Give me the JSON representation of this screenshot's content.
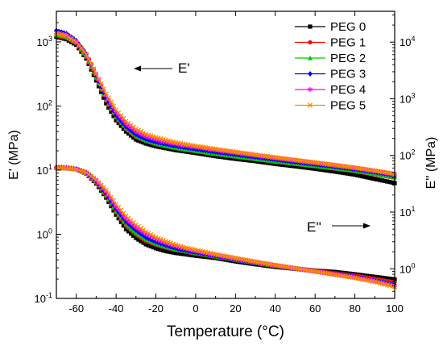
{
  "chart_data": {
    "type": "line",
    "title": "",
    "xlabel": "Temperature (°C)",
    "ylabel_left": "E' (MPa)",
    "ylabel_right": "E'' (MPa)",
    "xlim": [
      -70,
      100
    ],
    "ylim_left": [
      0.1,
      3000
    ],
    "ylim_right": [
      0.3,
      35000
    ],
    "yscale": "log",
    "x_ticks": [
      -60,
      -40,
      -20,
      0,
      20,
      40,
      60,
      80,
      100
    ],
    "y_left_ticks": [
      {
        "value": 0.1,
        "base": "10",
        "exp": "-1"
      },
      {
        "value": 1,
        "base": "10",
        "exp": "0"
      },
      {
        "value": 10,
        "base": "10",
        "exp": "1"
      },
      {
        "value": 100,
        "base": "10",
        "exp": "2"
      },
      {
        "value": 1000,
        "base": "10",
        "exp": "3"
      }
    ],
    "y_right_ticks": [
      {
        "value": 1,
        "base": "10",
        "exp": "0"
      },
      {
        "value": 10,
        "base": "10",
        "exp": "1"
      },
      {
        "value": 100,
        "base": "10",
        "exp": "2"
      },
      {
        "value": 1000,
        "base": "10",
        "exp": "3"
      },
      {
        "value": 10000,
        "base": "10",
        "exp": "4"
      }
    ],
    "grid": false,
    "legend_position": "top-right",
    "annotations": [
      {
        "text": "E'",
        "arrow": "left"
      },
      {
        "text": "E''",
        "arrow": "right"
      }
    ],
    "x": [
      -70,
      -65,
      -60,
      -55,
      -50,
      -45,
      -40,
      -35,
      -30,
      -25,
      -20,
      -15,
      -10,
      -5,
      0,
      10,
      20,
      30,
      40,
      50,
      60,
      70,
      80,
      90,
      100
    ],
    "series": [
      {
        "name": "PEG 0",
        "color": "#000000",
        "marker": "square",
        "storage_modulus": [
          1200,
          1100,
          900,
          550,
          250,
          110,
          60,
          40,
          30,
          26,
          23.5,
          22,
          20.5,
          19.5,
          18.5,
          16.5,
          15,
          13.8,
          12.5,
          11.5,
          10.5,
          9.5,
          8.5,
          7.3,
          6.3
        ],
        "loss_modulus": [
          60,
          59.5,
          57,
          48,
          32,
          18,
          9,
          5,
          3.5,
          2.7,
          2.3,
          2.05,
          1.9,
          1.8,
          1.7,
          1.55,
          1.35,
          1.2,
          1.08,
          1.0,
          0.93,
          0.88,
          0.8,
          0.72,
          0.65
        ]
      },
      {
        "name": "PEG 1",
        "color": "#ff0000",
        "marker": "circle",
        "storage_modulus": [
          1250,
          1150,
          950,
          580,
          270,
          120,
          66,
          44,
          33,
          28.5,
          25.5,
          23.5,
          22,
          20.8,
          19.7,
          17.8,
          16.2,
          14.8,
          13.5,
          12.5,
          11.5,
          10.5,
          9.6,
          8.6,
          7.6
        ],
        "loss_modulus": [
          60,
          59.5,
          57,
          48,
          33,
          19,
          9.8,
          5.7,
          4.0,
          3.1,
          2.65,
          2.35,
          2.15,
          2.0,
          1.85,
          1.62,
          1.42,
          1.25,
          1.12,
          1.02,
          0.93,
          0.84,
          0.76,
          0.67,
          0.58
        ]
      },
      {
        "name": "PEG 2",
        "color": "#00cc00",
        "marker": "triangle",
        "storage_modulus": [
          1300,
          1200,
          980,
          600,
          280,
          125,
          68,
          45,
          34,
          29,
          26,
          24,
          22.3,
          21,
          20,
          18,
          16.4,
          15,
          13.7,
          12.6,
          11.6,
          10.7,
          9.8,
          8.8,
          7.8
        ],
        "loss_modulus": [
          61,
          60,
          57.5,
          49,
          34,
          20,
          10.4,
          6.1,
          4.3,
          3.3,
          2.8,
          2.45,
          2.2,
          2.05,
          1.9,
          1.65,
          1.45,
          1.27,
          1.13,
          1.02,
          0.92,
          0.83,
          0.74,
          0.65,
          0.55
        ]
      },
      {
        "name": "PEG 3",
        "color": "#0000ff",
        "marker": "diamond",
        "storage_modulus": [
          1500,
          1350,
          1050,
          650,
          300,
          135,
          72,
          48,
          36,
          30.5,
          27.5,
          25.5,
          23.8,
          22.5,
          21.3,
          19.2,
          17.5,
          16,
          14.6,
          13.4,
          12.3,
          11.3,
          10.3,
          9.3,
          8.3
        ],
        "loss_modulus": [
          62,
          61,
          58,
          50,
          35,
          21.5,
          11.5,
          6.8,
          4.8,
          3.6,
          3.0,
          2.6,
          2.3,
          2.1,
          1.95,
          1.68,
          1.47,
          1.28,
          1.13,
          1.01,
          0.91,
          0.82,
          0.72,
          0.62,
          0.52
        ]
      },
      {
        "name": "PEG 4",
        "color": "#ff00ff",
        "marker": "star",
        "storage_modulus": [
          1400,
          1280,
          1020,
          640,
          310,
          145,
          80,
          53,
          40,
          33.5,
          30,
          27.5,
          25.5,
          24,
          22.8,
          20.5,
          18.6,
          16.9,
          15.4,
          14.1,
          12.9,
          11.8,
          10.8,
          9.7,
          8.6
        ],
        "loss_modulus": [
          61,
          60,
          57.5,
          50,
          36,
          23,
          12.5,
          7.6,
          5.4,
          4.1,
          3.35,
          2.85,
          2.5,
          2.25,
          2.05,
          1.74,
          1.5,
          1.3,
          1.14,
          1.01,
          0.9,
          0.8,
          0.71,
          0.61,
          0.5
        ]
      },
      {
        "name": "PEG 5",
        "color": "#ff8800",
        "marker": "x",
        "storage_modulus": [
          1350,
          1250,
          1000,
          640,
          320,
          155,
          87,
          58,
          44,
          36.5,
          32.5,
          29.5,
          27,
          25.3,
          23.8,
          21.3,
          19.2,
          17.4,
          15.8,
          14.4,
          13.2,
          12,
          10.9,
          9.8,
          8.7
        ],
        "loss_modulus": [
          60,
          59.5,
          57,
          50,
          37,
          24.5,
          13.8,
          8.5,
          6.0,
          4.5,
          3.6,
          3.05,
          2.65,
          2.35,
          2.15,
          1.8,
          1.55,
          1.33,
          1.16,
          1.02,
          0.9,
          0.79,
          0.69,
          0.59,
          0.48
        ]
      }
    ]
  }
}
